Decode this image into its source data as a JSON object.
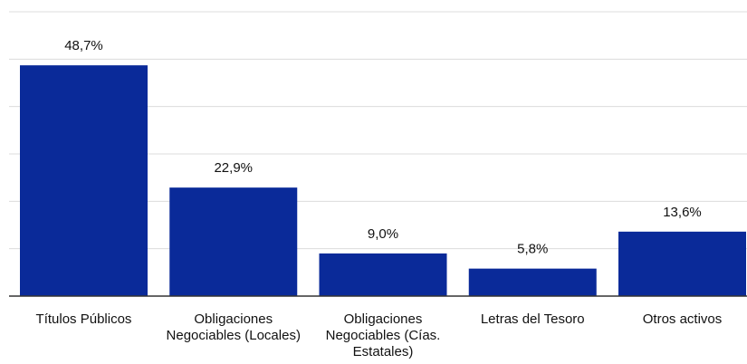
{
  "chart_data": {
    "type": "bar",
    "categories": [
      "Títulos Públicos",
      "Obligaciones Negociables (Locales)",
      "Obligaciones Negociables (Cías. Estatales)",
      "Letras del Tesoro",
      "Otros activos"
    ],
    "values": [
      48.7,
      22.9,
      9.0,
      5.8,
      13.6
    ],
    "value_labels": [
      "48,7%",
      "22,9%",
      "9,0%",
      "5,8%",
      "13,6%"
    ],
    "color": "#0a2a99",
    "ylim": [
      0,
      60
    ],
    "yticks": [
      0,
      10,
      20,
      30,
      40,
      50,
      60
    ],
    "grid": true
  }
}
